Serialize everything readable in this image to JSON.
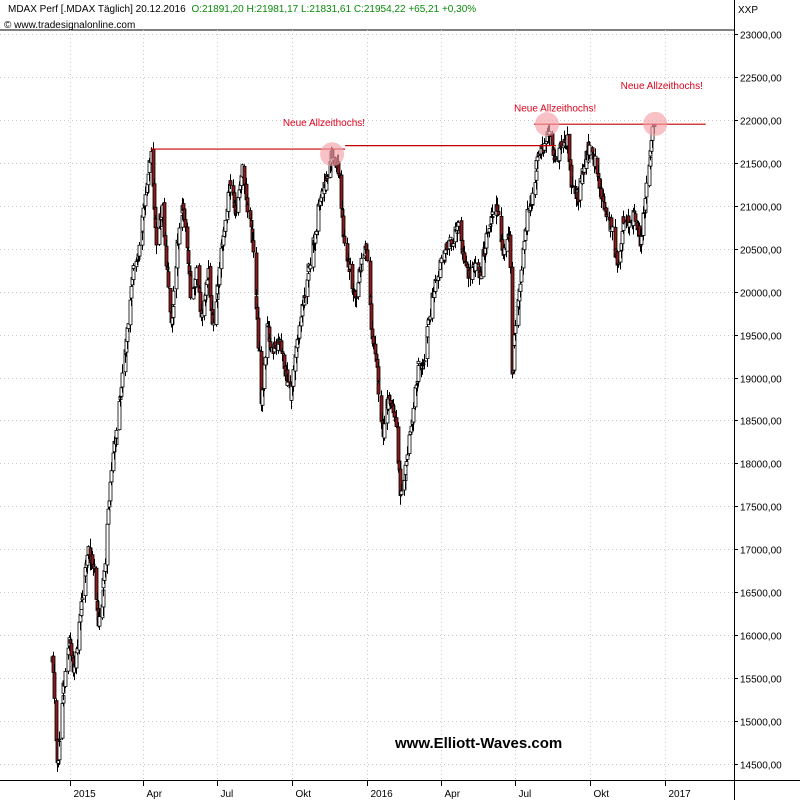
{
  "header": {
    "title": "MDAX Perf [.MDAX  Täglich] 20.12.2016",
    "ohlc": "O:21891,20 H:21981,17 L:21831,61 C:21954,22 +65,21 +0,30%",
    "source": "www.tradesignalonline.com",
    "symbol_label": "XXP"
  },
  "watermark": "www.Elliott-Waves.com",
  "colors": {
    "up": "#ffffff",
    "down": "#8b1a1a",
    "wick": "#000000",
    "annotation": "#e0001b",
    "resistance": "#c00000",
    "circle": "#f4a0a8"
  },
  "chart_data": {
    "type": "candlestick",
    "x_labels": [
      "2015",
      "Apr",
      "Jul",
      "Okt",
      "2016",
      "Apr",
      "Jul",
      "Okt",
      "2017"
    ],
    "y_ticks": [
      14500,
      15000,
      15500,
      16000,
      16500,
      17000,
      17500,
      18000,
      18500,
      19000,
      19500,
      20000,
      20500,
      21000,
      21500,
      22000,
      22500,
      23000
    ],
    "y_tick_labels": [
      "14500,00",
      "15000,00",
      "15500,00",
      "16000,00",
      "16500,00",
      "17000,00",
      "17500,00",
      "18000,00",
      "18500,00",
      "19000,00",
      "19500,00",
      "20000,00",
      "20500,00",
      "21000,00",
      "21500,00",
      "22000,00",
      "22500,00",
      "23000,00"
    ],
    "ylim": [
      14300,
      23200
    ],
    "anchors": [
      [
        "2014-12-10",
        15700
      ],
      [
        "2014-12-16",
        14500
      ],
      [
        "2014-12-22",
        15200
      ],
      [
        "2014-12-31",
        15950
      ],
      [
        "2015-01-05",
        15500
      ],
      [
        "2015-01-14",
        16300
      ],
      [
        "2015-01-23",
        17000
      ],
      [
        "2015-01-30",
        16800
      ],
      [
        "2015-02-05",
        16050
      ],
      [
        "2015-02-13",
        16800
      ],
      [
        "2015-02-20",
        17900
      ],
      [
        "2015-02-27",
        18400
      ],
      [
        "2015-03-06",
        19000
      ],
      [
        "2015-03-13",
        19600
      ],
      [
        "2015-03-20",
        20300
      ],
      [
        "2015-03-27",
        20500
      ],
      [
        "2015-04-02",
        21000
      ],
      [
        "2015-04-10",
        21600
      ],
      [
        "2015-04-17",
        20600
      ],
      [
        "2015-04-24",
        21000
      ],
      [
        "2015-05-05",
        19600
      ],
      [
        "2015-05-12",
        20500
      ],
      [
        "2015-05-20",
        21000
      ],
      [
        "2015-05-29",
        20000
      ],
      [
        "2015-06-05",
        20200
      ],
      [
        "2015-06-12",
        19700
      ],
      [
        "2015-06-19",
        20200
      ],
      [
        "2015-06-26",
        19600
      ],
      [
        "2015-07-03",
        20200
      ],
      [
        "2015-07-10",
        20800
      ],
      [
        "2015-07-17",
        21300
      ],
      [
        "2015-07-24",
        20900
      ],
      [
        "2015-07-31",
        21400
      ],
      [
        "2015-08-07",
        21000
      ],
      [
        "2015-08-14",
        20500
      ],
      [
        "2015-08-24",
        18700
      ],
      [
        "2015-08-31",
        19600
      ],
      [
        "2015-09-07",
        19300
      ],
      [
        "2015-09-14",
        19500
      ],
      [
        "2015-09-21",
        19100
      ],
      [
        "2015-09-29",
        18800
      ],
      [
        "2015-10-06",
        19400
      ],
      [
        "2015-10-13",
        19800
      ],
      [
        "2015-10-21",
        20300
      ],
      [
        "2015-10-28",
        20600
      ],
      [
        "2015-11-04",
        21100
      ],
      [
        "2015-11-11",
        21300
      ],
      [
        "2015-11-19",
        21600
      ],
      [
        "2015-11-26",
        21400
      ],
      [
        "2015-12-03",
        20600
      ],
      [
        "2015-12-10",
        20300
      ],
      [
        "2015-12-17",
        19900
      ],
      [
        "2015-12-23",
        20300
      ],
      [
        "2015-12-30",
        20600
      ],
      [
        "2016-01-07",
        19500
      ],
      [
        "2016-01-14",
        19000
      ],
      [
        "2016-01-20",
        18300
      ],
      [
        "2016-01-27",
        18800
      ],
      [
        "2016-02-03",
        18600
      ],
      [
        "2016-02-11",
        17600
      ],
      [
        "2016-02-18",
        18000
      ],
      [
        "2016-02-25",
        18500
      ],
      [
        "2016-03-03",
        19100
      ],
      [
        "2016-03-10",
        19200
      ],
      [
        "2016-03-17",
        19700
      ],
      [
        "2016-03-24",
        20100
      ],
      [
        "2016-03-31",
        20300
      ],
      [
        "2016-04-07",
        20500
      ],
      [
        "2016-04-14",
        20600
      ],
      [
        "2016-04-21",
        20800
      ],
      [
        "2016-04-28",
        20400
      ],
      [
        "2016-05-05",
        20200
      ],
      [
        "2016-05-12",
        20300
      ],
      [
        "2016-05-19",
        20200
      ],
      [
        "2016-05-26",
        20600
      ],
      [
        "2016-06-02",
        20900
      ],
      [
        "2016-06-09",
        21000
      ],
      [
        "2016-06-16",
        20400
      ],
      [
        "2016-06-23",
        20700
      ],
      [
        "2016-06-27",
        19000
      ],
      [
        "2016-07-01",
        19600
      ],
      [
        "2016-07-08",
        20200
      ],
      [
        "2016-07-15",
        20900
      ],
      [
        "2016-07-22",
        21100
      ],
      [
        "2016-07-29",
        21600
      ],
      [
        "2016-08-05",
        21700
      ],
      [
        "2016-08-12",
        21900
      ],
      [
        "2016-08-19",
        21500
      ],
      [
        "2016-08-26",
        21700
      ],
      [
        "2016-09-02",
        21800
      ],
      [
        "2016-09-09",
        21200
      ],
      [
        "2016-09-16",
        21100
      ],
      [
        "2016-09-23",
        21500
      ],
      [
        "2016-09-30",
        21700
      ],
      [
        "2016-10-07",
        21500
      ],
      [
        "2016-10-14",
        21100
      ],
      [
        "2016-10-21",
        20900
      ],
      [
        "2016-10-28",
        20700
      ],
      [
        "2016-11-04",
        20300
      ],
      [
        "2016-11-10",
        20800
      ],
      [
        "2016-11-17",
        20800
      ],
      [
        "2016-11-24",
        20900
      ],
      [
        "2016-12-01",
        20600
      ],
      [
        "2016-12-07",
        21000
      ],
      [
        "2016-12-12",
        21500
      ],
      [
        "2016-12-16",
        21900
      ],
      [
        "2016-12-20",
        21954
      ]
    ],
    "resistance_lines": [
      {
        "from": "2015-04-10",
        "to": "2015-12-05",
        "y": 21660
      },
      {
        "from": "2015-12-05",
        "to": "2016-08-20",
        "y": 21700
      },
      {
        "from": "2016-07-24",
        "to": "2017-02-20",
        "y": 21950
      }
    ],
    "annotations": [
      {
        "text": "Neue Allzeithochs!",
        "circle_date": "2015-11-19",
        "circle_y": 21600,
        "text_date": "2015-11-09",
        "text_y": 21930
      },
      {
        "text": "Neue Allzeithochs!",
        "circle_date": "2016-08-09",
        "circle_y": 21950,
        "text_date": "2016-08-19",
        "text_y": 22100
      },
      {
        "text": "Neue Allzeithochs!",
        "circle_date": "2016-12-20",
        "circle_y": 21954,
        "text_date": "2016-12-28",
        "text_y": 22360
      }
    ]
  }
}
